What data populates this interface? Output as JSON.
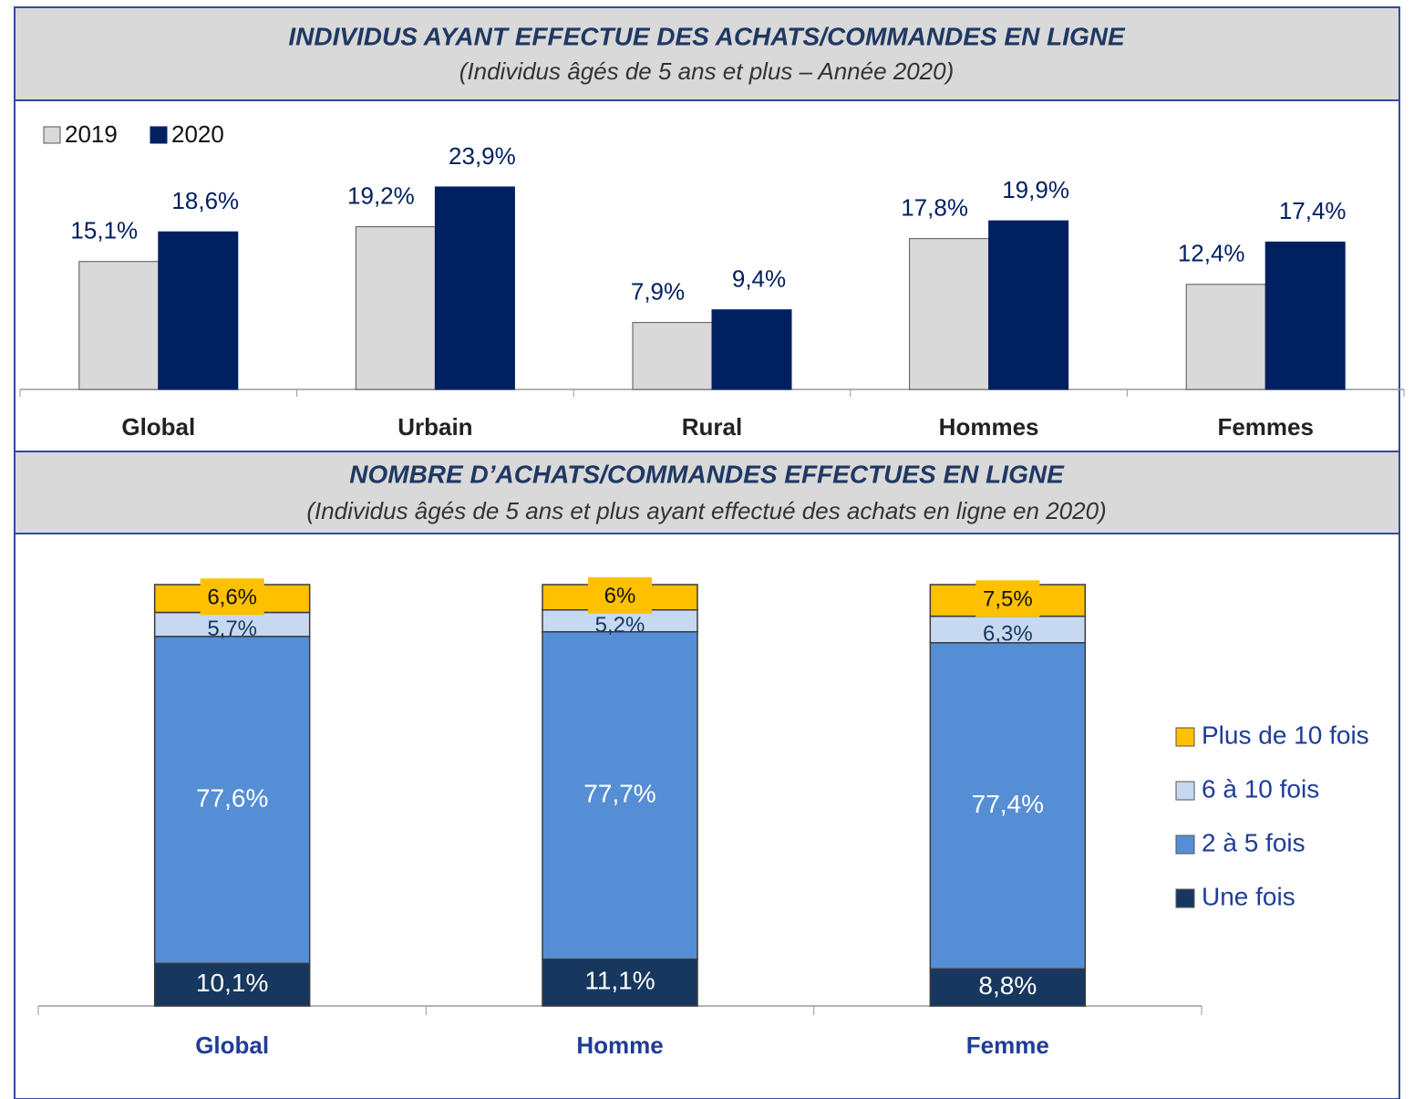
{
  "chart_data": [
    {
      "type": "bar",
      "title": "INDIVIDUS AYANT EFFECTUE DES ACHATS/COMMANDES EN LIGNE",
      "subtitle": "(Individus âgés de 5 ans et plus – Année 2020)",
      "categories": [
        "Global",
        "Urbain",
        "Rural",
        "Hommes",
        "Femmes"
      ],
      "series": [
        {
          "name": "2019",
          "color": "#d9d9d9",
          "values": [
            15.1,
            19.2,
            7.9,
            17.8,
            12.4
          ],
          "value_labels": [
            "15,1%",
            "19,2%",
            "7,9%",
            "17,8%",
            "12,4%"
          ]
        },
        {
          "name": "2020",
          "color": "#002060",
          "values": [
            18.6,
            23.9,
            9.4,
            19.9,
            17.4
          ],
          "value_labels": [
            "18,6%",
            "23,9%",
            "9,4%",
            "19,9%",
            "17,4%"
          ]
        }
      ],
      "legend": "top-left"
    },
    {
      "type": "stacked_bar",
      "title": "NOMBRE D’ACHATS/COMMANDES EFFECTUES EN LIGNE",
      "subtitle": "(Individus âgés de 5 ans et plus ayant effectué des achats en ligne en 2020)",
      "categories": [
        "Global",
        "Homme",
        "Femme"
      ],
      "series": [
        {
          "name": "Une fois",
          "color": "#17375e",
          "values": [
            10.1,
            11.1,
            8.8
          ],
          "value_labels": [
            "10,1%",
            "11,1%",
            "8,8%"
          ]
        },
        {
          "name": "2 à 5 fois",
          "color": "#558ed5",
          "values": [
            77.6,
            77.7,
            77.4
          ],
          "value_labels": [
            "77,6%",
            "77,7%",
            "77,4%"
          ]
        },
        {
          "name": "6 à 10 fois",
          "color": "#c6d9f1",
          "values": [
            5.7,
            5.2,
            6.3
          ],
          "value_labels": [
            "5,7%",
            "5,2%",
            "6,3%"
          ]
        },
        {
          "name": "Plus de 10 fois",
          "color": "#ffc000",
          "values": [
            6.6,
            6,
            7.5
          ],
          "value_labels": [
            "6,6%",
            "6%",
            "7,5%"
          ]
        }
      ],
      "legend": "right"
    }
  ]
}
